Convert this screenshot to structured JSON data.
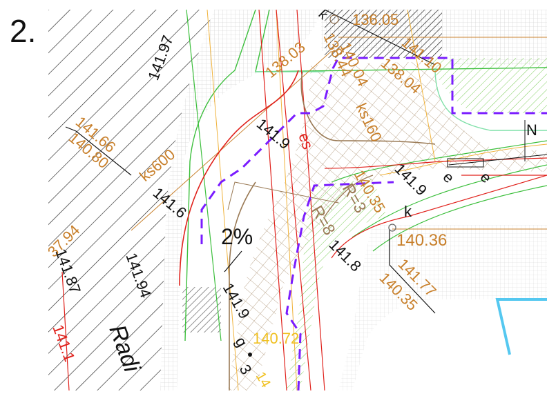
{
  "step_number": "2.",
  "colors": {
    "orange_label": "#c8802c",
    "red_line": "#e0211b",
    "green_line": "#3cbf3c",
    "purple_dash": "#7a1cff",
    "brown_line": "#9a7a55",
    "cyan_outline": "#55c8f0",
    "hatch": "#222222"
  },
  "labels": {
    "l_13605": "136.05",
    "l_13803": "138.03",
    "l_14110": "141.10",
    "l_13604": "138.04",
    "l_13844": "138.44",
    "l_14004": "140.04",
    "l_ks160": "ks160",
    "l_14166": "141.66",
    "l_14080": "140.80",
    "l_ks600": "ks600",
    "l_14197": "141.97",
    "l_1419a": "141.9",
    "l_1416": "141.6",
    "l_2pct": "2%",
    "l_3794": "37.94",
    "l_14187": "141.87",
    "l_14194": "141.94",
    "l_1411": "141.1",
    "l_radi": "Radi",
    "l_1419b": "141.9",
    "l_g": "g",
    "l_14072": "140.72",
    "l_14035a": "140.35",
    "l_r3": "R=3",
    "l_r8": "R=8",
    "l_1419c": "141.9",
    "l_1418": "141.8",
    "l_e1": "e",
    "l_e2": "e",
    "l_k1": "k",
    "l_k2": "k",
    "l_14036": "140.36",
    "l_14177": "141.77",
    "l_14035b": "140.35",
    "l_es": "es",
    "l_n": "N",
    "l_3": "3",
    "l_14": "14"
  }
}
